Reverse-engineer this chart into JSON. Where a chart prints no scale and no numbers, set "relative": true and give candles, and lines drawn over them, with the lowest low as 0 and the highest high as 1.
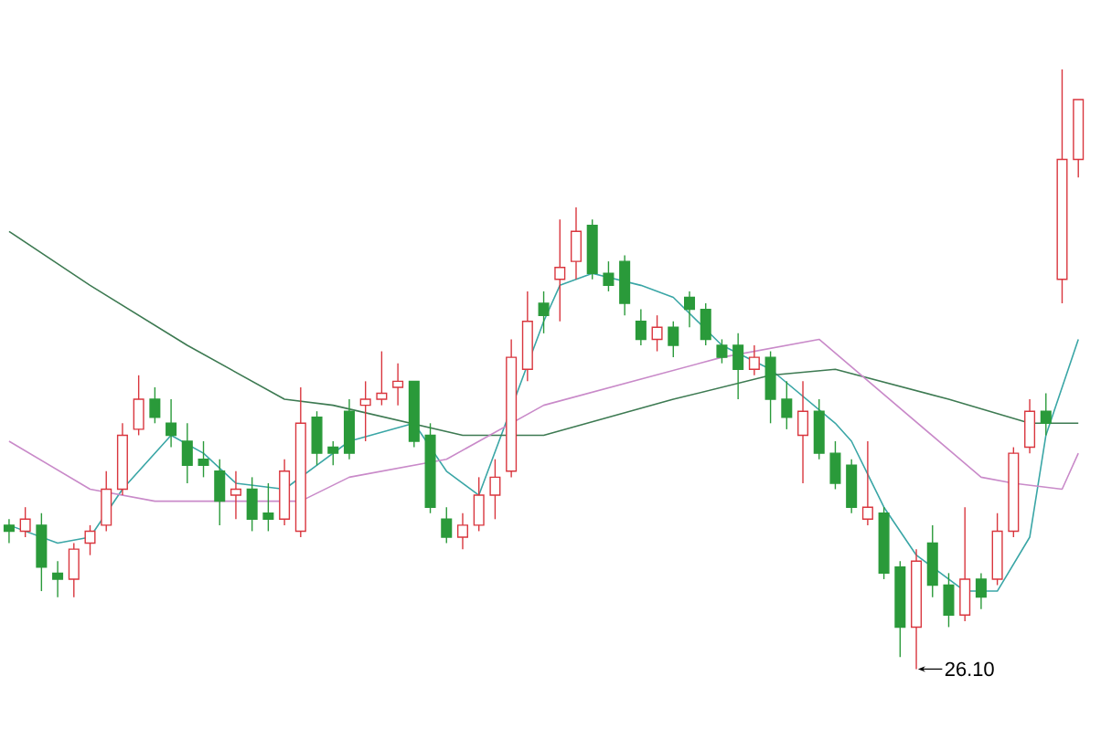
{
  "chart_data": {
    "type": "candlestick",
    "relative": true,
    "categories": [
      null,
      null,
      null,
      null,
      null,
      null,
      null,
      null,
      null,
      null,
      null,
      null,
      null,
      null,
      null,
      null,
      null,
      null,
      null,
      null,
      null,
      null,
      null,
      null,
      null,
      null,
      null,
      null,
      null,
      null,
      null,
      null,
      null,
      null,
      null,
      null,
      null,
      null,
      null,
      null,
      null,
      null,
      null,
      null,
      null,
      null,
      null,
      null,
      null,
      null,
      null,
      null,
      null,
      null,
      null,
      null,
      null,
      null,
      null,
      null,
      null,
      null,
      null,
      null,
      null,
      null,
      null
    ],
    "ohlc": [
      [
        0.24,
        0.25,
        0.21,
        0.23
      ],
      [
        0.23,
        0.27,
        0.22,
        0.25
      ],
      [
        0.24,
        0.26,
        0.13,
        0.17
      ],
      [
        0.16,
        0.18,
        0.12,
        0.15
      ],
      [
        0.15,
        0.21,
        0.12,
        0.2
      ],
      [
        0.21,
        0.24,
        0.19,
        0.23
      ],
      [
        0.24,
        0.33,
        0.23,
        0.3
      ],
      [
        0.3,
        0.41,
        0.29,
        0.39
      ],
      [
        0.4,
        0.49,
        0.39,
        0.45
      ],
      [
        0.45,
        0.47,
        0.41,
        0.42
      ],
      [
        0.41,
        0.45,
        0.37,
        0.39
      ],
      [
        0.38,
        0.41,
        0.31,
        0.34
      ],
      [
        0.35,
        0.38,
        0.32,
        0.34
      ],
      [
        0.33,
        0.35,
        0.24,
        0.28
      ],
      [
        0.29,
        0.33,
        0.25,
        0.3
      ],
      [
        0.3,
        0.32,
        0.23,
        0.25
      ],
      [
        0.26,
        0.31,
        0.23,
        0.25
      ],
      [
        0.25,
        0.35,
        0.24,
        0.33
      ],
      [
        0.23,
        0.47,
        0.22,
        0.41
      ],
      [
        0.42,
        0.43,
        0.34,
        0.36
      ],
      [
        0.37,
        0.38,
        0.34,
        0.36
      ],
      [
        0.43,
        0.45,
        0.35,
        0.36
      ],
      [
        0.44,
        0.48,
        0.38,
        0.45
      ],
      [
        0.45,
        0.53,
        0.44,
        0.46
      ],
      [
        0.47,
        0.51,
        0.44,
        0.48
      ],
      [
        0.48,
        0.48,
        0.37,
        0.38
      ],
      [
        0.39,
        0.41,
        0.26,
        0.27
      ],
      [
        0.25,
        0.27,
        0.21,
        0.22
      ],
      [
        0.22,
        0.26,
        0.2,
        0.24
      ],
      [
        0.24,
        0.32,
        0.23,
        0.29
      ],
      [
        0.29,
        0.35,
        0.25,
        0.32
      ],
      [
        0.33,
        0.55,
        0.32,
        0.52
      ],
      [
        0.5,
        0.63,
        0.48,
        0.58
      ],
      [
        0.61,
        0.63,
        0.56,
        0.59
      ],
      [
        0.65,
        0.75,
        0.58,
        0.67
      ],
      [
        0.68,
        0.77,
        0.65,
        0.73
      ],
      [
        0.74,
        0.75,
        0.65,
        0.66
      ],
      [
        0.66,
        0.68,
        0.63,
        0.64
      ],
      [
        0.68,
        0.69,
        0.59,
        0.61
      ],
      [
        0.58,
        0.6,
        0.54,
        0.55
      ],
      [
        0.55,
        0.59,
        0.53,
        0.57
      ],
      [
        0.57,
        0.58,
        0.52,
        0.54
      ],
      [
        0.62,
        0.63,
        0.57,
        0.6
      ],
      [
        0.6,
        0.61,
        0.54,
        0.55
      ],
      [
        0.54,
        0.55,
        0.51,
        0.52
      ],
      [
        0.54,
        0.56,
        0.45,
        0.5
      ],
      [
        0.5,
        0.54,
        0.49,
        0.52
      ],
      [
        0.52,
        0.53,
        0.41,
        0.45
      ],
      [
        0.45,
        0.48,
        0.4,
        0.42
      ],
      [
        0.39,
        0.48,
        0.31,
        0.43
      ],
      [
        0.43,
        0.45,
        0.35,
        0.36
      ],
      [
        0.36,
        0.38,
        0.3,
        0.31
      ],
      [
        0.34,
        0.35,
        0.26,
        0.27
      ],
      [
        0.25,
        0.38,
        0.24,
        0.27
      ],
      [
        0.26,
        0.27,
        0.15,
        0.16
      ],
      [
        0.17,
        0.18,
        0.02,
        0.07
      ],
      [
        0.07,
        0.2,
        0,
        0.18
      ],
      [
        0.21,
        0.24,
        0.12,
        0.14
      ],
      [
        0.14,
        0.16,
        0.07,
        0.09
      ],
      [
        0.09,
        0.27,
        0.08,
        0.15
      ],
      [
        0.15,
        0.16,
        0.1,
        0.12
      ],
      [
        0.15,
        0.26,
        0.14,
        0.23
      ],
      [
        0.23,
        0.37,
        0.22,
        0.36
      ],
      [
        0.37,
        0.45,
        0.36,
        0.43
      ],
      [
        0.43,
        0.46,
        0.39,
        0.41
      ],
      [
        0.65,
        1,
        0.61,
        0.85
      ],
      [
        0.85,
        0.95,
        0.82,
        0.95
      ]
    ],
    "colors": [
      "#2a9a3a",
      "#d9363e",
      "#2a9a3a",
      "#2a9a3a",
      "#d9363e",
      "#d9363e",
      "#d9363e",
      "#d9363e",
      "#d9363e",
      "#2a9a3a",
      "#2a9a3a",
      "#2a9a3a",
      "#2a9a3a",
      "#2a9a3a",
      "#d9363e",
      "#2a9a3a",
      "#2a9a3a",
      "#d9363e",
      "#d9363e",
      "#2a9a3a",
      "#2a9a3a",
      "#2a9a3a",
      "#d9363e",
      "#d9363e",
      "#d9363e",
      "#2a9a3a",
      "#2a9a3a",
      "#2a9a3a",
      "#d9363e",
      "#d9363e",
      "#d9363e",
      "#d9363e",
      "#d9363e",
      "#2a9a3a",
      "#d9363e",
      "#d9363e",
      "#2a9a3a",
      "#2a9a3a",
      "#2a9a3a",
      "#2a9a3a",
      "#d9363e",
      "#2a9a3a",
      "#2a9a3a",
      "#2a9a3a",
      "#2a9a3a",
      "#2a9a3a",
      "#d9363e",
      "#2a9a3a",
      "#2a9a3a",
      "#d9363e",
      "#2a9a3a",
      "#2a9a3a",
      "#2a9a3a",
      "#d9363e",
      "#2a9a3a",
      "#2a9a3a",
      "#d9363e",
      "#2a9a3a",
      "#2a9a3a",
      "#d9363e",
      "#2a9a3a",
      "#d9363e",
      "#d9363e",
      "#d9363e",
      "#2a9a3a",
      "#d9363e",
      "#d9363e"
    ],
    "series": [
      {
        "type": "line",
        "color": "#3aa6a6",
        "values": [
          0.24,
          null,
          null,
          0.21,
          null,
          0.22,
          null,
          0.3,
          null,
          null,
          0.39,
          null,
          0.36,
          null,
          0.31,
          null,
          null,
          0.3,
          null,
          null,
          null,
          0.38,
          null,
          null,
          null,
          0.41,
          null,
          0.33,
          null,
          0.29,
          null,
          null,
          null,
          0.58,
          0.64,
          null,
          0.66,
          null,
          null,
          0.64,
          null,
          0.62,
          null,
          null,
          0.54,
          null,
          null,
          0.5,
          null,
          null,
          null,
          0.41,
          0.38,
          null,
          0.27,
          null,
          0.19,
          null,
          null,
          0.13,
          null,
          0.13,
          null,
          0.22,
          0.39,
          null,
          0.55
        ]
      },
      {
        "type": "line",
        "color": "#3d7a52",
        "values": [
          0.73,
          null,
          null,
          null,
          null,
          0.64,
          null,
          null,
          null,
          null,
          null,
          0.54,
          null,
          null,
          null,
          null,
          null,
          0.45,
          null,
          null,
          0.44,
          null,
          null,
          null,
          null,
          null,
          null,
          null,
          0.39,
          null,
          null,
          null,
          null,
          0.39,
          null,
          null,
          null,
          null,
          null,
          null,
          null,
          0.45,
          null,
          null,
          null,
          null,
          null,
          0.49,
          null,
          null,
          null,
          0.5,
          null,
          null,
          null,
          null,
          null,
          null,
          0.45,
          null,
          null,
          null,
          null,
          0.41,
          null,
          null,
          0.41
        ]
      },
      {
        "type": "line",
        "color": "#c98ac9",
        "values": [
          0.38,
          null,
          null,
          null,
          null,
          0.3,
          null,
          null,
          null,
          0.28,
          null,
          null,
          null,
          null,
          null,
          null,
          null,
          null,
          0.28,
          null,
          null,
          0.32,
          null,
          null,
          null,
          null,
          null,
          0.35,
          null,
          null,
          null,
          null,
          null,
          0.44,
          null,
          null,
          null,
          null,
          null,
          null,
          null,
          null,
          null,
          null,
          0.52,
          null,
          null,
          null,
          null,
          null,
          0.55,
          null,
          null,
          null,
          null,
          null,
          null,
          null,
          null,
          null,
          0.32,
          null,
          0.31,
          null,
          null,
          0.3,
          0.36
        ]
      }
    ],
    "annotations": [
      "26.10"
    ]
  }
}
